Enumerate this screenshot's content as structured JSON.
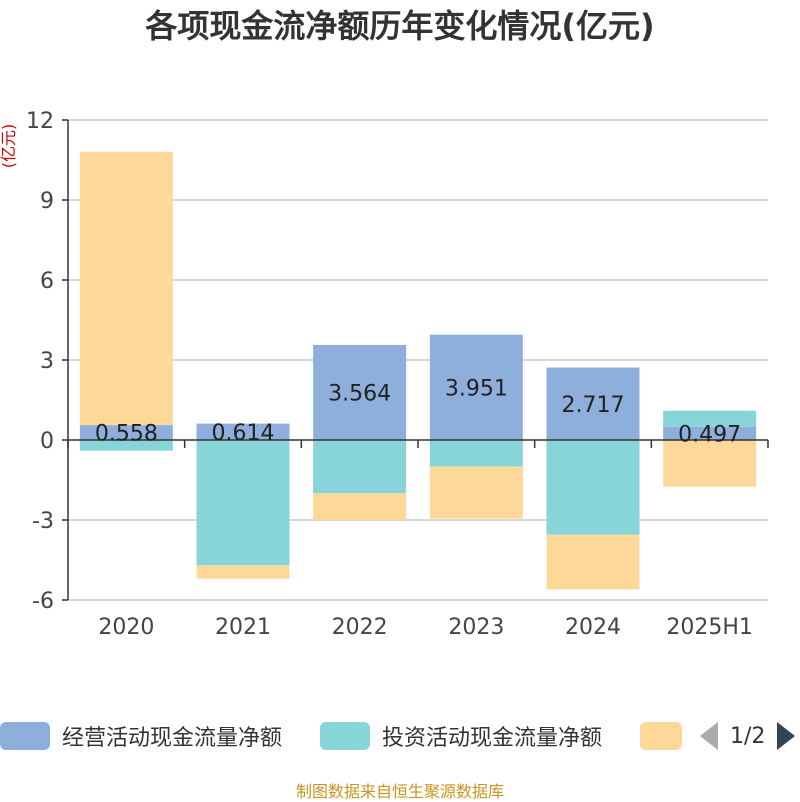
{
  "title": "各项现金流净额历年变化情况(亿元)",
  "source": "制图数据来自恒生聚源数据库",
  "legend": {
    "items": [
      {
        "name": "经营活动现金流量净额",
        "color": "#8eaedb"
      },
      {
        "name": "投资活动现金流量净额",
        "color": "#87d5d8"
      },
      {
        "name": "",
        "color": "#fed898"
      }
    ],
    "page": "1/2"
  },
  "chart_data": {
    "type": "bar",
    "stacked": true,
    "ylabel": "(亿元)",
    "ylim": [
      -6,
      12
    ],
    "yticks": [
      12,
      9,
      6,
      3,
      0,
      -3,
      -6
    ],
    "ytick_labels": [
      "12",
      "9",
      "6",
      "3",
      "0",
      "-3",
      "-6"
    ],
    "grid": true,
    "categories": [
      "2020",
      "2021",
      "2022",
      "2023",
      "2024",
      "2025H1"
    ],
    "series": [
      {
        "name": "经营活动现金流量净额",
        "color": "#8eaedb",
        "values": [
          0.558,
          0.614,
          3.564,
          3.951,
          2.717,
          0.497
        ],
        "labels": [
          "0.558",
          "0.614",
          "3.564",
          "3.951",
          "2.717",
          "0.497"
        ]
      },
      {
        "name": "投资活动现金流量净额",
        "color": "#87d5d8",
        "values": [
          -0.4,
          -4.7,
          -2.0,
          -1.0,
          -3.55,
          0.6
        ]
      },
      {
        "name": "",
        "color": "#fed898",
        "values": [
          10.25,
          -0.5,
          -1.0,
          -1.95,
          -2.05,
          -1.75
        ]
      }
    ]
  }
}
